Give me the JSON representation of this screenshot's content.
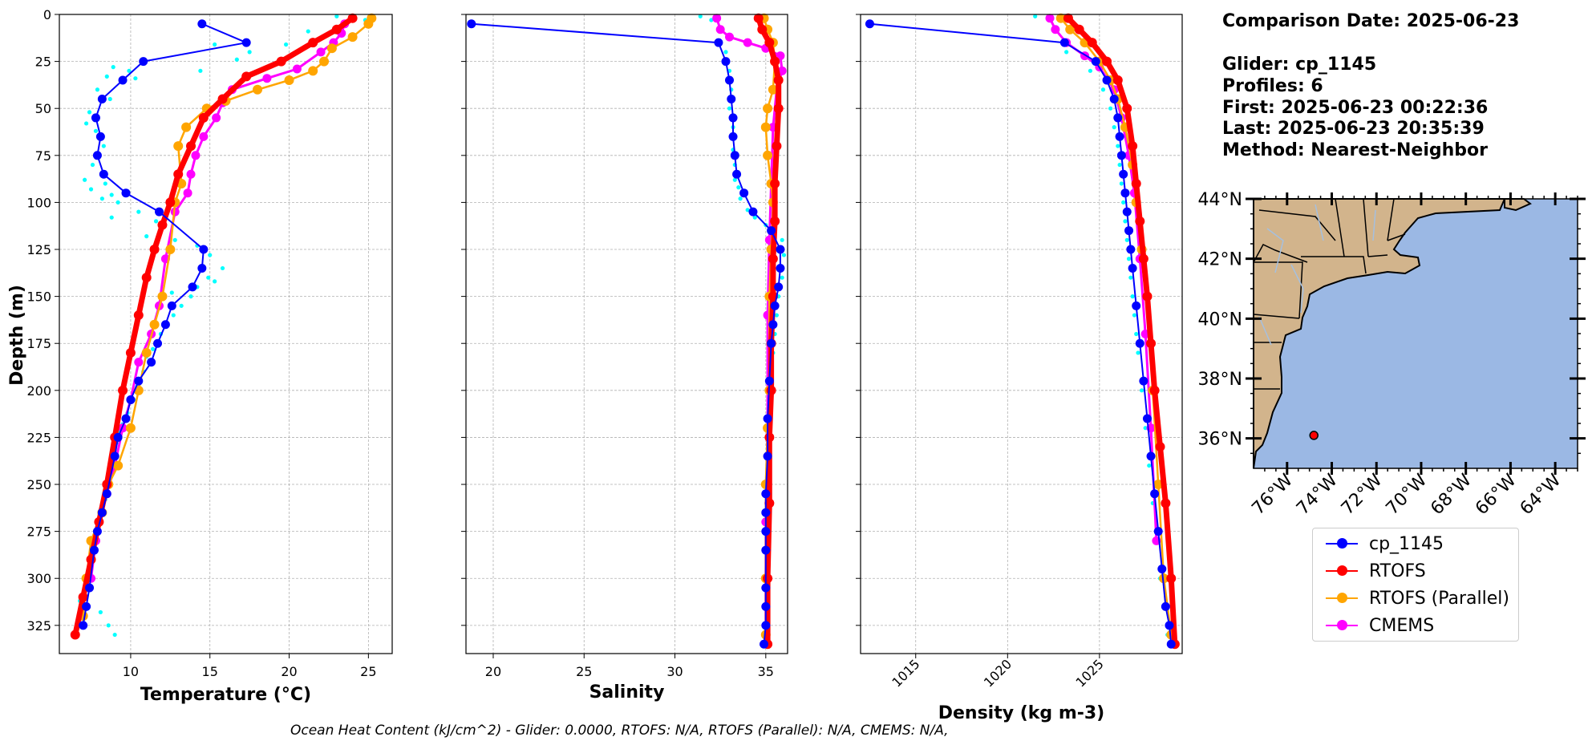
{
  "info": {
    "comparison_date": "Comparison Date: 2025-06-23",
    "glider": "Glider: cp_1145",
    "profiles": "Profiles: 6",
    "first": "First: 2025-06-23 00:22:36",
    "last": "Last: 2025-06-23 20:35:39",
    "method": "Method: Nearest-Neighbor"
  },
  "legend": [
    {
      "name": "cp_1145",
      "color": "#0000ff"
    },
    {
      "name": "RTOFS",
      "color": "#ff0000"
    },
    {
      "name": "RTOFS (Parallel)",
      "color": "#ffa500"
    },
    {
      "name": "CMEMS",
      "color": "#ff00ff"
    }
  ],
  "footer": "Ocean Heat Content (kJ/cm^2) - Glider: 0.0000,  RTOFS: N/A,  RTOFS (Parallel): N/A,  CMEMS: N/A,",
  "colors": {
    "glider": "#0000ff",
    "glider_raw": "#00ffff",
    "rtofs": "#ff0000",
    "rtofs_parallel": "#ffa500",
    "cmems": "#ff00ff",
    "land": "#d2b48c",
    "ocean": "#9bb8e4",
    "rivers": "#a5c0e0"
  },
  "chart_data": [
    {
      "type": "line",
      "xlabel": "Temperature (°C)",
      "ylabel": "Depth (m)",
      "xlim": [
        5.5,
        26.5
      ],
      "ylim": [
        340,
        0
      ],
      "xticks": [
        10,
        15,
        20,
        25
      ],
      "yticks": [
        0,
        25,
        50,
        75,
        100,
        125,
        150,
        175,
        200,
        225,
        250,
        275,
        300,
        325
      ],
      "grid": true,
      "series": [
        {
          "name": "cp_1145",
          "role": "glider",
          "x": [
            14.5,
            17.3,
            10.8,
            9.5,
            8.2,
            7.8,
            8.1,
            7.9,
            8.3,
            9.7,
            11.8,
            14.6,
            14.5,
            13.9,
            12.6,
            12.2,
            11.7,
            11.3,
            10.5,
            10.0,
            9.7,
            9.2,
            9.0,
            8.5,
            8.2,
            7.9,
            7.7,
            7.4,
            7.2,
            7.0
          ],
          "y": [
            5,
            15,
            25,
            35,
            45,
            55,
            65,
            75,
            85,
            95,
            105,
            125,
            135,
            145,
            155,
            165,
            175,
            185,
            195,
            205,
            215,
            225,
            235,
            255,
            265,
            275,
            285,
            305,
            315,
            325
          ]
        },
        {
          "name": "RTOFS",
          "role": "rtofs",
          "x": [
            24.0,
            23.0,
            21.5,
            19.5,
            17.3,
            15.8,
            14.6,
            13.8,
            13.0,
            12.5,
            12.0,
            11.5,
            11.0,
            10.5,
            10.0,
            9.5,
            9.0,
            8.5,
            8.0,
            7.5,
            7.0,
            6.5
          ],
          "y": [
            2,
            8,
            15,
            25,
            33,
            45,
            55,
            70,
            85,
            100,
            112,
            125,
            140,
            160,
            180,
            200,
            225,
            250,
            270,
            290,
            310,
            330
          ]
        },
        {
          "name": "RTOFS (Parallel)",
          "role": "rtofs_parallel",
          "x": [
            25.2,
            25.0,
            24.0,
            22.7,
            22.2,
            21.5,
            20.0,
            18.0,
            16.0,
            14.8,
            13.5,
            13.0,
            13.2,
            12.8,
            12.5,
            12.0,
            11.5,
            11.0,
            10.5,
            10.0,
            9.2,
            8.6,
            8.2,
            7.5,
            7.2,
            7.0
          ],
          "y": [
            2,
            5,
            12,
            18,
            25,
            30,
            35,
            40,
            46,
            50,
            60,
            70,
            90,
            100,
            125,
            150,
            165,
            180,
            200,
            220,
            240,
            250,
            265,
            280,
            300,
            320
          ]
        },
        {
          "name": "CMEMS",
          "role": "cmems",
          "x": [
            23.5,
            23.3,
            22.8,
            22.0,
            20.5,
            18.6,
            16.4,
            15.8,
            15.4,
            14.6,
            14.1,
            13.8,
            13.6,
            12.8,
            12.2,
            11.8,
            11.3,
            10.5,
            10.0,
            9.5,
            9.0,
            8.5,
            8.2,
            7.8,
            7.5
          ],
          "y": [
            5,
            10,
            15,
            20,
            29,
            34,
            40,
            47,
            55,
            65,
            75,
            85,
            95,
            105,
            130,
            155,
            170,
            185,
            205,
            220,
            240,
            255,
            265,
            280,
            300
          ]
        }
      ],
      "raw_points": {
        "role": "glider_raw",
        "x": [
          23.0,
          24.8,
          21.2,
          19.8,
          17.5,
          16.7,
          15.3,
          14.4,
          8.9,
          9.9,
          8.5,
          7.9,
          10.3,
          8.7,
          7.4,
          7.2,
          7.8,
          8.3,
          7.6,
          7.1,
          8.4,
          7.5,
          8.8,
          8.2,
          9.2,
          10.5,
          8.8,
          11.6,
          11.0,
          12.8,
          14.2,
          15.0,
          15.8,
          14.9,
          15.3,
          14.2,
          13.8,
          12.6,
          13.2,
          12.7,
          12.1,
          11.9,
          11.4,
          11.0,
          10.8,
          10.4,
          10.2,
          9.8,
          9.5,
          9.3,
          9.1,
          8.9,
          8.8,
          8.7,
          8.5,
          8.4,
          8.2,
          8.0,
          7.8,
          7.7,
          7.5,
          7.4,
          7.3,
          6.8,
          8.1,
          8.6,
          9.0
        ],
        "y": [
          1,
          3,
          9,
          16,
          20,
          24,
          16,
          30,
          28,
          30,
          33,
          40,
          34,
          45,
          52,
          58,
          62,
          70,
          80,
          88,
          90,
          93,
          96,
          98,
          100,
          105,
          108,
          110,
          118,
          120,
          123,
          128,
          135,
          140,
          142,
          145,
          150,
          148,
          155,
          160,
          165,
          170,
          178,
          182,
          190,
          198,
          205,
          212,
          218,
          222,
          228,
          232,
          240,
          245,
          250,
          258,
          262,
          270,
          278,
          285,
          290,
          298,
          305,
          312,
          318,
          325,
          330
        ]
      }
    },
    {
      "type": "line",
      "xlabel": "Salinity",
      "xlim": [
        18.5,
        36.2
      ],
      "ylim": [
        340,
        0
      ],
      "xticks": [
        20,
        25,
        30,
        35
      ],
      "yticks": [
        0,
        25,
        50,
        75,
        100,
        125,
        150,
        175,
        200,
        225,
        250,
        275,
        300,
        325
      ],
      "grid": true,
      "series": [
        {
          "name": "cp_1145",
          "role": "glider",
          "x": [
            18.8,
            32.4,
            32.8,
            33.0,
            33.1,
            33.2,
            33.2,
            33.3,
            33.4,
            33.8,
            34.3,
            35.3,
            35.8,
            35.8,
            35.7,
            35.5,
            35.4,
            35.3,
            35.2,
            35.1,
            35.1,
            35.0,
            35.0,
            35.0,
            35.0,
            35.0,
            35.0,
            35.0,
            34.9
          ],
          "y": [
            5,
            15,
            25,
            35,
            45,
            55,
            65,
            75,
            85,
            95,
            105,
            115,
            125,
            135,
            145,
            155,
            165,
            175,
            195,
            215,
            235,
            255,
            265,
            275,
            285,
            305,
            315,
            325,
            335
          ]
        },
        {
          "name": "RTOFS",
          "role": "rtofs",
          "x": [
            34.6,
            34.8,
            35.2,
            35.5,
            35.7,
            35.7,
            35.6,
            35.5,
            35.5,
            35.4,
            35.4,
            35.3,
            35.3,
            35.2,
            35.2,
            35.1,
            35.1
          ],
          "y": [
            2,
            8,
            15,
            25,
            35,
            50,
            70,
            90,
            110,
            130,
            150,
            175,
            200,
            225,
            260,
            300,
            335
          ]
        },
        {
          "name": "RTOFS (Parallel)",
          "role": "rtofs_parallel",
          "x": [
            34.9,
            35.1,
            35.4,
            35.5,
            35.4,
            35.1,
            35.0,
            35.1,
            35.3,
            35.4,
            35.3,
            35.2,
            35.2,
            35.1,
            35.0,
            35.0,
            35.0
          ],
          "y": [
            2,
            8,
            15,
            25,
            40,
            50,
            60,
            75,
            90,
            100,
            125,
            150,
            200,
            220,
            250,
            300,
            330
          ]
        },
        {
          "name": "CMEMS",
          "role": "cmems",
          "x": [
            32.3,
            32.5,
            33.0,
            34.0,
            35.0,
            35.8,
            35.9,
            35.6,
            35.4,
            35.3,
            35.2,
            35.1,
            35.1,
            35.0,
            35.0
          ],
          "y": [
            2,
            8,
            12,
            15,
            18,
            22,
            30,
            40,
            60,
            90,
            120,
            160,
            220,
            270,
            330
          ]
        }
      ],
      "raw_points": {
        "role": "glider_raw",
        "x": [
          31.4,
          32.0,
          32.8,
          33.0,
          33.1,
          33.0,
          33.2,
          33.1,
          33.2,
          33.3,
          33.3,
          33.5,
          33.6,
          34.0,
          34.4,
          35.0,
          35.9,
          36.0,
          35.9,
          35.7,
          35.6,
          35.5,
          35.4,
          35.3,
          35.3,
          35.2,
          35.2,
          35.1,
          35.1,
          35.1,
          35.0,
          35.0,
          35.0,
          35.0
        ],
        "y": [
          1,
          3,
          20,
          30,
          40,
          50,
          60,
          65,
          72,
          80,
          88,
          92,
          98,
          104,
          108,
          112,
          120,
          128,
          140,
          150,
          160,
          170,
          180,
          190,
          200,
          210,
          225,
          240,
          255,
          270,
          285,
          300,
          315,
          330
        ]
      }
    },
    {
      "type": "line",
      "xlabel": "Density (kg m-3)",
      "xlim": [
        1012,
        1029.5
      ],
      "ylim": [
        340,
        0
      ],
      "xticks": [
        1015,
        1020,
        1025
      ],
      "yticks": [
        0,
        25,
        50,
        75,
        100,
        125,
        150,
        175,
        200,
        225,
        250,
        275,
        300,
        325
      ],
      "grid": true,
      "series": [
        {
          "name": "cp_1145",
          "role": "glider",
          "x": [
            1012.5,
            1023.1,
            1024.8,
            1025.4,
            1025.8,
            1026.0,
            1026.1,
            1026.2,
            1026.3,
            1026.4,
            1026.5,
            1026.6,
            1026.7,
            1026.8,
            1027.0,
            1027.2,
            1027.4,
            1027.6,
            1027.8,
            1028.0,
            1028.2,
            1028.4,
            1028.6,
            1028.8,
            1028.9
          ],
          "y": [
            5,
            15,
            25,
            35,
            45,
            55,
            65,
            75,
            85,
            95,
            105,
            115,
            125,
            135,
            155,
            175,
            195,
            215,
            235,
            255,
            275,
            295,
            315,
            325,
            335
          ]
        },
        {
          "name": "RTOFS",
          "role": "rtofs",
          "x": [
            1023.3,
            1023.9,
            1024.6,
            1025.4,
            1026.0,
            1026.5,
            1026.8,
            1027.0,
            1027.2,
            1027.4,
            1027.6,
            1027.8,
            1028.0,
            1028.3,
            1028.6,
            1028.9,
            1029.1
          ],
          "y": [
            2,
            8,
            15,
            25,
            35,
            50,
            70,
            90,
            110,
            130,
            150,
            175,
            200,
            230,
            260,
            300,
            335
          ]
        },
        {
          "name": "RTOFS (Parallel)",
          "role": "rtofs_parallel",
          "x": [
            1022.9,
            1023.4,
            1024.2,
            1025.0,
            1025.6,
            1026.0,
            1026.4,
            1026.8,
            1027.0,
            1027.3,
            1027.6,
            1027.9,
            1028.2,
            1028.5,
            1028.9
          ],
          "y": [
            2,
            8,
            15,
            25,
            35,
            45,
            60,
            80,
            100,
            125,
            150,
            200,
            250,
            300,
            330
          ]
        },
        {
          "name": "CMEMS",
          "role": "cmems",
          "x": [
            1022.3,
            1022.6,
            1023.2,
            1024.2,
            1025.0,
            1025.8,
            1026.2,
            1026.6,
            1026.9,
            1027.2,
            1027.5,
            1027.8,
            1028.1
          ],
          "y": [
            2,
            8,
            15,
            22,
            28,
            40,
            55,
            75,
            95,
            130,
            170,
            220,
            280
          ]
        }
      ],
      "raw_points": {
        "role": "glider_raw",
        "x": [
          1021.5,
          1022.3,
          1023.2,
          1024.5,
          1025.2,
          1025.6,
          1025.8,
          1026.0,
          1026.1,
          1026.2,
          1026.3,
          1026.4,
          1026.5,
          1026.6,
          1026.7,
          1026.8,
          1026.9,
          1027.0,
          1027.1,
          1027.3,
          1027.5,
          1027.7,
          1027.9,
          1028.1,
          1028.3,
          1028.5,
          1028.7
        ],
        "y": [
          1,
          3,
          20,
          30,
          40,
          50,
          60,
          70,
          80,
          90,
          100,
          110,
          120,
          130,
          140,
          150,
          160,
          170,
          180,
          200,
          220,
          240,
          260,
          280,
          300,
          315,
          330
        ]
      }
    }
  ],
  "map": {
    "lat_ticks": [
      "44°N",
      "42°N",
      "40°N",
      "38°N",
      "36°N"
    ],
    "lon_ticks": [
      "76°W",
      "74°W",
      "72°W",
      "70°W",
      "68°W",
      "66°W",
      "64°W"
    ],
    "lon_range": [
      -77.5,
      -63
    ],
    "lat_range": [
      35,
      44
    ],
    "glider_position": {
      "lon": -74.8,
      "lat": 36.1
    }
  }
}
